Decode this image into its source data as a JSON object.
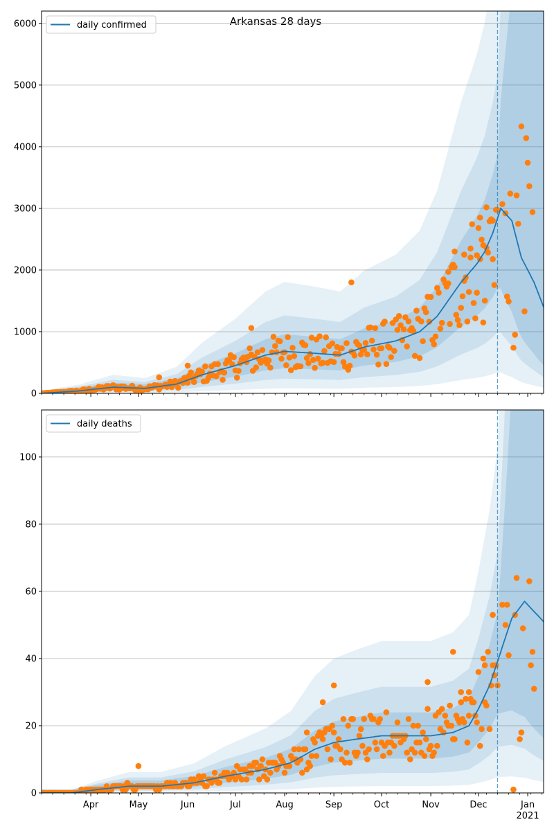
{
  "chart_data": [
    {
      "type": "line",
      "title": "Arkansas 28 days",
      "legend": {
        "label": "daily confirmed",
        "placement": "top-left"
      },
      "ylim": [
        0,
        6200
      ],
      "yticks": [
        0,
        1000,
        2000,
        3000,
        4000,
        5000,
        6000
      ],
      "xlim": [
        "2020-03-01",
        "2021-01-11"
      ],
      "forecast_start": "2020-12-13",
      "grid": "y",
      "colors": {
        "line": "#1f77b4",
        "points": "#ff7f0e",
        "band": "#1f77b4"
      },
      "trend_knots": [
        [
          "2020-03-01",
          0
        ],
        [
          "2020-03-25",
          40
        ],
        [
          "2020-04-15",
          100
        ],
        [
          "2020-05-05",
          80
        ],
        [
          "2020-05-25",
          150
        ],
        [
          "2020-06-10",
          300
        ],
        [
          "2020-07-01",
          450
        ],
        [
          "2020-07-20",
          620
        ],
        [
          "2020-08-01",
          680
        ],
        [
          "2020-08-20",
          650
        ],
        [
          "2020-09-05",
          620
        ],
        [
          "2020-09-20",
          750
        ],
        [
          "2020-10-10",
          850
        ],
        [
          "2020-10-25",
          1000
        ],
        [
          "2020-11-05",
          1250
        ],
        [
          "2020-11-20",
          1800
        ],
        [
          "2020-11-30",
          2100
        ],
        [
          "2020-12-05",
          2300
        ],
        [
          "2020-12-10",
          2600
        ],
        [
          "2020-12-15",
          3000
        ],
        [
          "2020-12-22",
          2800
        ],
        [
          "2020-12-28",
          2200
        ],
        [
          "2021-01-05",
          1800
        ],
        [
          "2021-01-11",
          1400
        ]
      ],
      "points": [
        [
          "2020-05-14",
          260
        ],
        [
          "2020-06-01",
          450
        ],
        [
          "2020-07-11",
          1060
        ],
        [
          "2020-09-12",
          1800
        ],
        [
          "2020-11-12",
          1970
        ],
        [
          "2020-11-16",
          2300
        ],
        [
          "2020-11-22",
          2250
        ],
        [
          "2020-11-26",
          2350
        ],
        [
          "2020-11-30",
          2240
        ],
        [
          "2020-12-02",
          2850
        ],
        [
          "2020-12-06",
          2360
        ],
        [
          "2020-12-10",
          2800
        ],
        [
          "2020-12-16",
          3070
        ],
        [
          "2020-12-18",
          2920
        ],
        [
          "2020-12-21",
          3240
        ],
        [
          "2020-12-25",
          3210
        ],
        [
          "2020-12-26",
          2750
        ],
        [
          "2020-12-28",
          4330
        ],
        [
          "2020-12-31",
          4140
        ],
        [
          "2021-01-01",
          3740
        ],
        [
          "2021-01-02",
          3360
        ],
        [
          "2021-01-04",
          2940
        ],
        [
          "2020-12-30",
          1330
        ],
        [
          "2020-12-23",
          740
        ],
        [
          "2020-12-24",
          950
        ],
        [
          "2020-12-19",
          1570
        ],
        [
          "2020-12-20",
          1490
        ],
        [
          "2020-12-04",
          1150
        ]
      ]
    },
    {
      "type": "line",
      "title": "",
      "legend": {
        "label": "daily deaths",
        "placement": "top-left"
      },
      "ylim": [
        0,
        114
      ],
      "yticks": [
        0,
        20,
        40,
        60,
        80,
        100
      ],
      "xlim": [
        "2020-03-01",
        "2021-01-11"
      ],
      "xticks": [
        "Apr",
        "May",
        "Jun",
        "Jul",
        "Aug",
        "Sep",
        "Oct",
        "Nov",
        "Dec",
        "Jan"
      ],
      "xtick_dates": [
        "2020-04-01",
        "2020-05-01",
        "2020-06-01",
        "2020-07-01",
        "2020-08-01",
        "2020-09-01",
        "2020-10-01",
        "2020-11-01",
        "2020-12-01",
        "2021-01-01"
      ],
      "xyear_label": "2021",
      "forecast_start": "2020-12-13",
      "grid": "y",
      "colors": {
        "line": "#1f77b4",
        "points": "#ff7f0e",
        "band": "#1f77b4"
      },
      "trend_knots": [
        [
          "2020-03-01",
          0
        ],
        [
          "2020-03-20",
          0
        ],
        [
          "2020-04-05",
          1
        ],
        [
          "2020-04-25",
          2
        ],
        [
          "2020-05-15",
          2
        ],
        [
          "2020-06-05",
          3
        ],
        [
          "2020-06-25",
          5
        ],
        [
          "2020-07-20",
          7
        ],
        [
          "2020-08-05",
          9
        ],
        [
          "2020-08-20",
          13
        ],
        [
          "2020-09-01",
          15
        ],
        [
          "2020-09-15",
          16
        ],
        [
          "2020-10-01",
          17
        ],
        [
          "2020-10-15",
          17
        ],
        [
          "2020-11-01",
          17
        ],
        [
          "2020-11-15",
          18
        ],
        [
          "2020-11-25",
          20
        ],
        [
          "2020-12-01",
          25
        ],
        [
          "2020-12-08",
          32
        ],
        [
          "2020-12-15",
          42
        ],
        [
          "2020-12-22",
          52
        ],
        [
          "2020-12-30",
          57
        ],
        [
          "2021-01-05",
          54
        ],
        [
          "2021-01-11",
          51
        ]
      ],
      "points": [
        [
          "2020-05-01",
          8
        ],
        [
          "2020-08-15",
          18
        ],
        [
          "2020-08-25",
          27
        ],
        [
          "2020-09-01",
          32
        ],
        [
          "2020-10-30",
          33
        ],
        [
          "2020-11-15",
          42
        ],
        [
          "2020-11-20",
          30
        ],
        [
          "2020-11-25",
          30
        ],
        [
          "2020-12-05",
          38
        ],
        [
          "2020-12-10",
          53
        ],
        [
          "2020-12-16",
          56
        ],
        [
          "2020-12-19",
          56
        ],
        [
          "2020-12-24",
          53
        ],
        [
          "2020-12-25",
          64
        ],
        [
          "2020-12-29",
          49
        ],
        [
          "2021-01-02",
          63
        ],
        [
          "2021-01-04",
          42
        ],
        [
          "2021-01-03",
          38
        ],
        [
          "2020-12-27",
          16
        ],
        [
          "2020-12-28",
          18
        ],
        [
          "2020-12-23",
          1
        ],
        [
          "2020-12-18",
          50
        ],
        [
          "2020-12-20",
          41
        ],
        [
          "2021-01-05",
          31
        ]
      ]
    }
  ]
}
